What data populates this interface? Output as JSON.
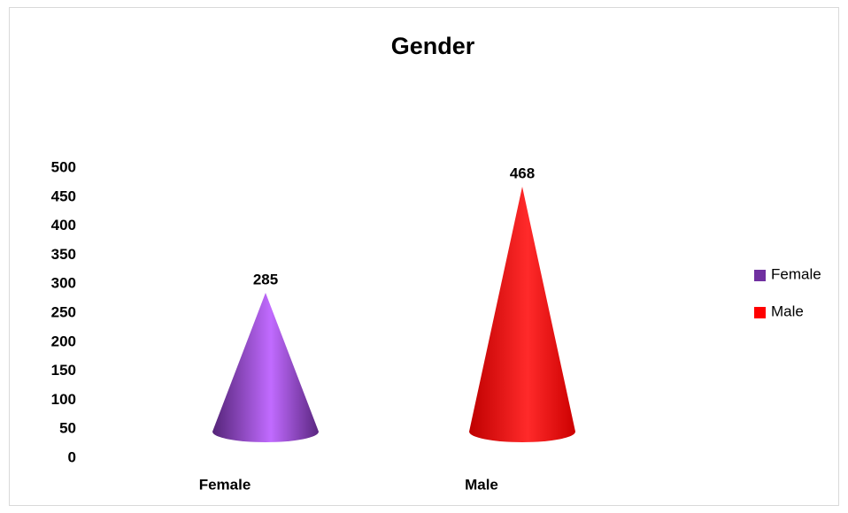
{
  "chart_data": {
    "type": "cone",
    "title": "Gender",
    "categories": [
      "Female",
      "Male"
    ],
    "series": [
      {
        "name": "Female",
        "color": "#7030a0",
        "values": [
          285,
          null
        ]
      },
      {
        "name": "Male",
        "color": "#ff0000",
        "values": [
          null,
          468
        ]
      }
    ],
    "ylim": [
      0,
      500
    ],
    "yticks": [
      0,
      50,
      100,
      150,
      200,
      250,
      300,
      350,
      400,
      450,
      500
    ],
    "grid": false,
    "legend": "right"
  }
}
